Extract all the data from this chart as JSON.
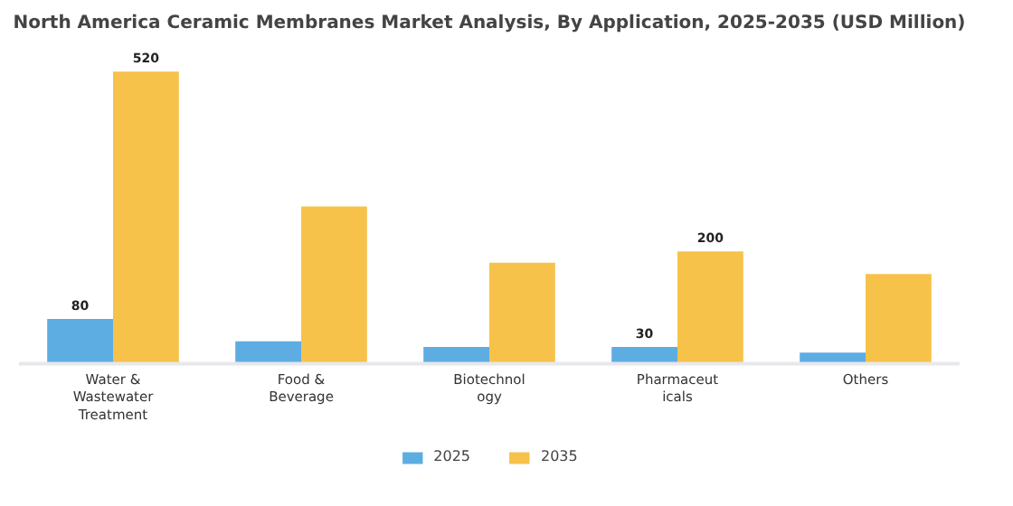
{
  "chart_data": {
    "type": "bar",
    "title": "North America Ceramic Membranes Market Analysis, By Application, 2025-2035 (USD Million)",
    "categories": [
      "Water &\nWastewater\nTreatment",
      "Food &\nBeverage",
      "Biotechnol\nogy",
      "Pharmaceut\nicals",
      "Others"
    ],
    "series": [
      {
        "name": "2025",
        "color": "#5dade2",
        "values": [
          80,
          40,
          30,
          30,
          20
        ],
        "value_labels": [
          "80",
          null,
          null,
          "30",
          null
        ]
      },
      {
        "name": "2035",
        "color": "#f7c24a",
        "values": [
          520,
          280,
          180,
          200,
          160
        ],
        "value_labels": [
          "520",
          null,
          null,
          "200",
          null
        ]
      }
    ],
    "legend": "bottom"
  }
}
